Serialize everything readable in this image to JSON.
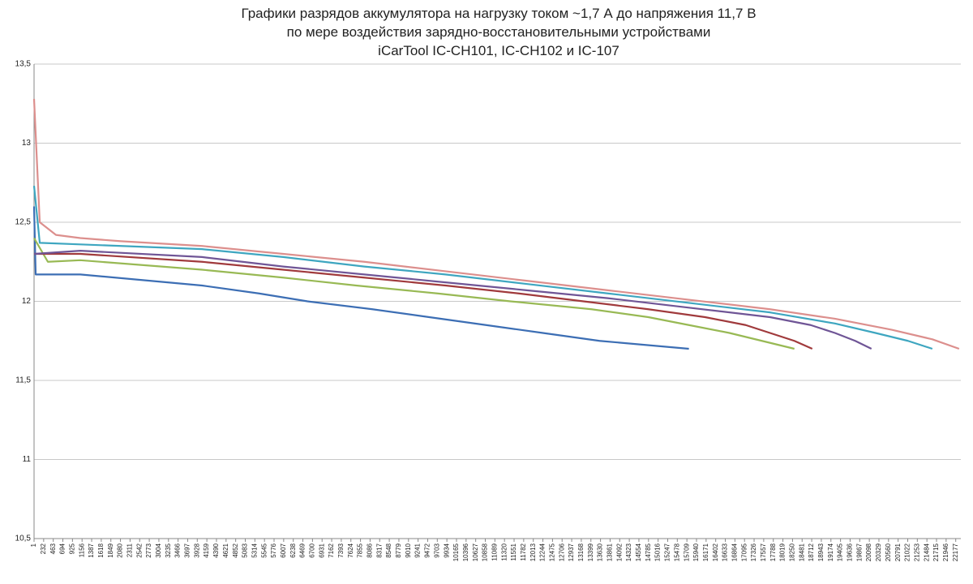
{
  "chart_data": {
    "type": "line",
    "title": [
      "Графики разрядов аккумулятора на нагрузку током ~1,7 А до напряжения 11,7 В",
      "по мере воздействия зарядно-восстановительными устройствами",
      "iCarTool IC-CH101, IC-CH102 и IC-107"
    ],
    "xlim": [
      1,
      22300
    ],
    "xticks": [
      1,
      232,
      463,
      694,
      925,
      1156,
      1387,
      1618,
      1849,
      2080,
      2311,
      2542,
      2773,
      3004,
      3235,
      3466,
      3697,
      3928,
      4159,
      4390,
      4621,
      4852,
      5083,
      5314,
      5545,
      5776,
      6007,
      6238,
      6469,
      6700,
      6931,
      7162,
      7393,
      7624,
      7855,
      8086,
      8317,
      8548,
      8779,
      9010,
      9241,
      9472,
      9703,
      9934,
      10165,
      10396,
      10627,
      10858,
      11089,
      11320,
      11551,
      11782,
      12013,
      12244,
      12475,
      12706,
      12937,
      13168,
      13399,
      13630,
      13861,
      14092,
      14323,
      14554,
      14785,
      15016,
      15247,
      15478,
      15709,
      15940,
      16171,
      16402,
      16633,
      16864,
      17095,
      17326,
      17557,
      17788,
      18019,
      18250,
      18481,
      18712,
      18943,
      19174,
      19405,
      19636,
      19867,
      20098,
      20329,
      20560,
      20791,
      21022,
      21253,
      21484,
      21715,
      21946,
      22177
    ],
    "ylim": [
      10.5,
      13.5
    ],
    "yticks": [
      {
        "value": 10.5,
        "label": "10,5"
      },
      11,
      {
        "value": 11.5,
        "label": "11,5"
      },
      12,
      {
        "value": 12.5,
        "label": "12,5"
      },
      13,
      {
        "value": 13.5,
        "label": "13,5"
      }
    ],
    "grid": true,
    "series": [
      {
        "color": "#3c6eb4",
        "x": [
          1,
          40,
          1114,
          4042,
          5409,
          6581,
          8142,
          9509,
          10876,
          12243,
          13609,
          15757
        ],
        "values": [
          12.6,
          12.17,
          12.17,
          12.1,
          12.05,
          12.0,
          11.95,
          11.9,
          11.85,
          11.8,
          11.75,
          11.7
        ]
      },
      {
        "color": "#98b954",
        "x": [
          1,
          333,
          1114,
          4042,
          5995,
          7752,
          9704,
          11462,
          13414,
          14781,
          15757,
          16733,
          17514,
          18295
        ],
        "values": [
          12.4,
          12.25,
          12.26,
          12.2,
          12.15,
          12.1,
          12.05,
          12.0,
          11.95,
          11.9,
          11.85,
          11.8,
          11.75,
          11.7
        ]
      },
      {
        "color": "#a03a3c",
        "x": [
          1,
          1114,
          4042,
          5995,
          7947,
          9900,
          11657,
          13219,
          14781,
          16147,
          17123,
          17709,
          18295,
          18725
        ],
        "values": [
          12.3,
          12.3,
          12.25,
          12.2,
          12.15,
          12.1,
          12.05,
          12.0,
          11.95,
          11.9,
          11.85,
          11.8,
          11.75,
          11.7
        ]
      },
      {
        "color": "#6f5596",
        "x": [
          1,
          1114,
          4042,
          5995,
          7947,
          9900,
          11852,
          13805,
          15757,
          17709,
          18686,
          19271,
          19759,
          20149
        ],
        "values": [
          12.3,
          12.32,
          12.28,
          12.22,
          12.17,
          12.12,
          12.07,
          12.02,
          11.96,
          11.9,
          11.85,
          11.8,
          11.75,
          11.7
        ]
      },
      {
        "color": "#3ea6c0",
        "x": [
          1,
          138,
          1114,
          4042,
          5995,
          7947,
          9900,
          11852,
          13805,
          15757,
          17709,
          19271,
          20247,
          21028,
          21614
        ],
        "values": [
          12.73,
          12.37,
          12.36,
          12.33,
          12.28,
          12.22,
          12.17,
          12.11,
          12.05,
          11.99,
          11.93,
          11.86,
          11.8,
          11.75,
          11.7
        ]
      },
      {
        "color": "#dc8f8d",
        "x": [
          1,
          138,
          528,
          1114,
          2090,
          4042,
          5995,
          7947,
          9900,
          11852,
          13805,
          15757,
          17709,
          19271,
          20638,
          21614,
          22258
        ],
        "values": [
          13.28,
          12.5,
          12.42,
          12.4,
          12.38,
          12.35,
          12.3,
          12.25,
          12.19,
          12.13,
          12.07,
          12.01,
          11.95,
          11.89,
          11.82,
          11.76,
          11.7
        ]
      }
    ]
  }
}
